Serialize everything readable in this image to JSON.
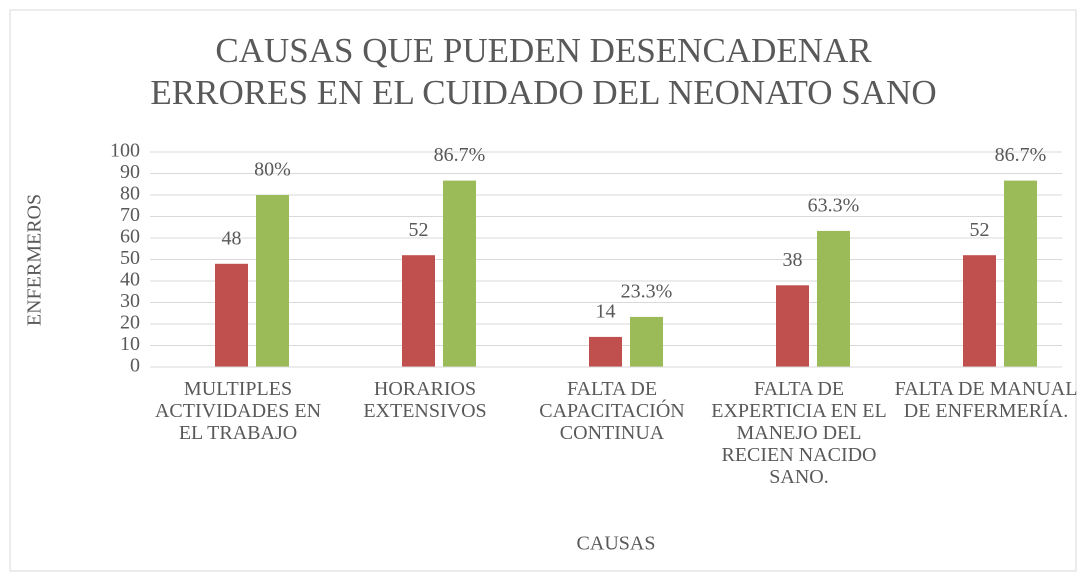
{
  "chart_data": {
    "type": "bar",
    "title": "CAUSAS QUE PUEDEN DESENCADENAR\nERRORES EN EL CUIDADO DEL NEONATO SANO",
    "x_label": "CAUSAS",
    "y_label": "ENFERMEROS",
    "categories": [
      "MULTIPLES ACTIVIDADES EN EL TRABAJO",
      "HORARIOS EXTENSIVOS",
      "FALTA DE CAPACITACIÓN CONTINUA",
      "FALTA DE EXPERTICIA EN EL MANEJO DEL RECIEN NACIDO SANO.",
      "FALTA DE MANUAL DE ENFERMERÍA."
    ],
    "series": [
      {
        "color": "#c0504d",
        "values": [
          48,
          52,
          14,
          38,
          52
        ]
      },
      {
        "color": "#9bbb59",
        "values": [
          80,
          86.7,
          23.3,
          63.3,
          86.7
        ],
        "value_labels": [
          "80%",
          "86.7%",
          "23.3%",
          "63.3%",
          "86.7%"
        ]
      }
    ],
    "ylim": [
      0,
      100
    ],
    "yticks": [
      0,
      10,
      20,
      30,
      40,
      50,
      60,
      70,
      80,
      90,
      100
    ],
    "grid": true
  }
}
